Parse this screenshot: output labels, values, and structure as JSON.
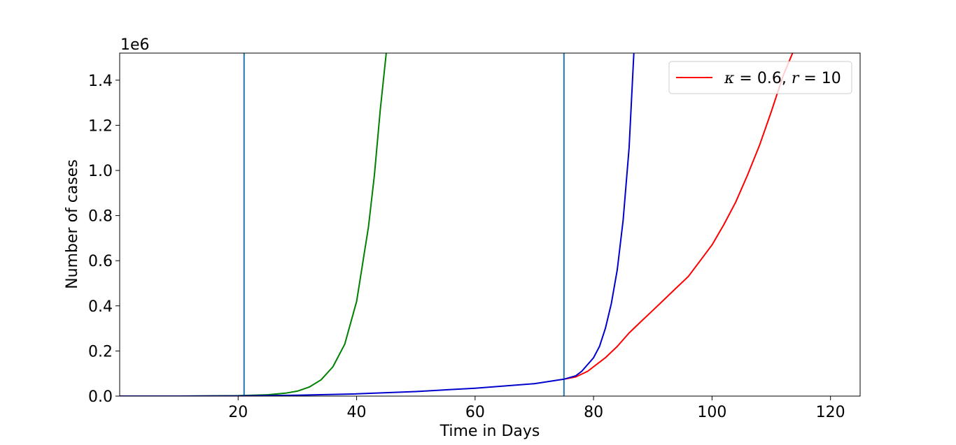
{
  "chart_data": {
    "type": "line",
    "title": "",
    "xlabel": "Time in Days",
    "ylabel": "Number of cases",
    "y_offset_text": "1e6",
    "xlim": [
      0,
      125
    ],
    "ylim": [
      0,
      1.52
    ],
    "x_ticks": [
      {
        "value": 20,
        "label": "20"
      },
      {
        "value": 40,
        "label": "40"
      },
      {
        "value": 60,
        "label": "60"
      },
      {
        "value": 80,
        "label": "80"
      },
      {
        "value": 100,
        "label": "100"
      },
      {
        "value": 120,
        "label": "120"
      }
    ],
    "y_ticks": [
      {
        "value": 0.0,
        "label": "0.0"
      },
      {
        "value": 0.2,
        "label": "0.2"
      },
      {
        "value": 0.4,
        "label": "0.4"
      },
      {
        "value": 0.6,
        "label": "0.6"
      },
      {
        "value": 0.8,
        "label": "0.8"
      },
      {
        "value": 1.0,
        "label": "1.0"
      },
      {
        "value": 1.2,
        "label": "1.2"
      },
      {
        "value": 1.4,
        "label": "1.4"
      }
    ],
    "grid": false,
    "legend_position": "top-right",
    "vertical_lines": [
      {
        "x": 21,
        "color": "#1f77b4"
      },
      {
        "x": 75,
        "color": "#1f77b4"
      }
    ],
    "series": [
      {
        "name": "κ = 0.6, r = 10",
        "legend_math": {
          "kappa_sym": "κ",
          "eq1": " = 0.6, ",
          "r_sym": "r",
          "eq2": " = 10"
        },
        "in_legend": true,
        "color": "#ff0000",
        "x": [
          75,
          77,
          79,
          80,
          82,
          84,
          86,
          88,
          90,
          92,
          94,
          96,
          98,
          100,
          102,
          104,
          106,
          108,
          110,
          112,
          113.6
        ],
        "y": [
          0.075,
          0.085,
          0.11,
          0.13,
          0.17,
          0.22,
          0.28,
          0.33,
          0.38,
          0.43,
          0.48,
          0.53,
          0.6,
          0.67,
          0.76,
          0.86,
          0.98,
          1.11,
          1.26,
          1.42,
          1.52
        ]
      },
      {
        "color": "#008000",
        "in_legend": false,
        "x": [
          0,
          10,
          20,
          25,
          28,
          30,
          32,
          34,
          36,
          38,
          40,
          42,
          43,
          44,
          45,
          45.3
        ],
        "y": [
          0.0,
          0.0,
          0.002,
          0.006,
          0.013,
          0.022,
          0.04,
          0.072,
          0.13,
          0.23,
          0.42,
          0.75,
          0.98,
          1.27,
          1.52,
          1.55
        ]
      },
      {
        "color": "#0000cd",
        "in_legend": false,
        "x": [
          0,
          10,
          20,
          30,
          40,
          50,
          60,
          70,
          75,
          77,
          78,
          80,
          81,
          82,
          83,
          84,
          85,
          86,
          86.8
        ],
        "y": [
          0.0,
          0.0,
          0.001,
          0.004,
          0.01,
          0.02,
          0.035,
          0.055,
          0.075,
          0.09,
          0.11,
          0.17,
          0.22,
          0.3,
          0.41,
          0.56,
          0.78,
          1.1,
          1.52
        ]
      }
    ]
  }
}
